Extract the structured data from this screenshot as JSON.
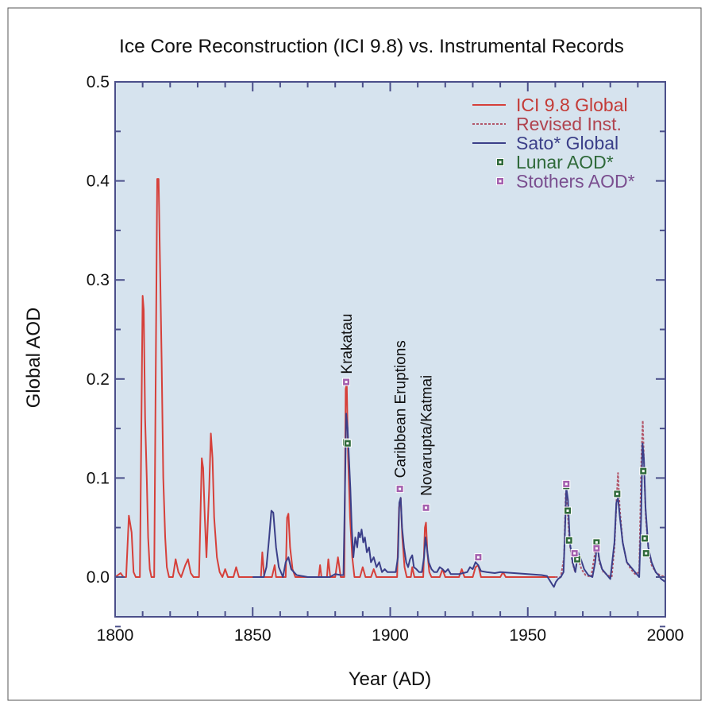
{
  "chart_data": {
    "type": "line",
    "title": "Ice Core Reconstruction (ICI 9.8) vs. Instrumental Records",
    "xlabel": "Year (AD)",
    "ylabel": "Global AOD",
    "xlim": [
      1800,
      2000
    ],
    "ylim": [
      -0.05,
      0.5
    ],
    "grid": false,
    "legend_position": "top-right",
    "x_ticks": [
      {
        "value": 1800,
        "label": "1800"
      },
      {
        "value": 1850,
        "label": "1850"
      },
      {
        "value": 1900,
        "label": "1900"
      },
      {
        "value": 1950,
        "label": "1950"
      },
      {
        "value": 2000,
        "label": "2000"
      }
    ],
    "y_ticks": [
      {
        "value": 0.0,
        "label": "0.0"
      },
      {
        "value": 0.1,
        "label": "0.1"
      },
      {
        "value": 0.2,
        "label": "0.2"
      },
      {
        "value": 0.3,
        "label": "0.3"
      },
      {
        "value": 0.4,
        "label": "0.4"
      },
      {
        "value": 0.5,
        "label": "0.5"
      }
    ],
    "series": [
      {
        "name": "ICI 9.8 Global",
        "color": "#d6403a",
        "style": "solid",
        "points": [
          [
            1800,
            0
          ],
          [
            1802,
            0.004
          ],
          [
            1803,
            0
          ],
          [
            1804,
            0
          ],
          [
            1805,
            0.062
          ],
          [
            1806,
            0.045
          ],
          [
            1806.7,
            0.005
          ],
          [
            1807.5,
            0
          ],
          [
            1809,
            0
          ],
          [
            1809.6,
            0.17
          ],
          [
            1810.0,
            0.284
          ],
          [
            1810.4,
            0.27
          ],
          [
            1810.9,
            0.16
          ],
          [
            1811.5,
            0.1
          ],
          [
            1812,
            0.04
          ],
          [
            1812.6,
            0.008
          ],
          [
            1813.2,
            0
          ],
          [
            1814.2,
            0
          ],
          [
            1815.3,
            0.402
          ],
          [
            1815.8,
            0.402
          ],
          [
            1816.3,
            0.32
          ],
          [
            1816.9,
            0.22
          ],
          [
            1817.5,
            0.1
          ],
          [
            1818.2,
            0.04
          ],
          [
            1818.8,
            0.01
          ],
          [
            1819.6,
            0
          ],
          [
            1821,
            0
          ],
          [
            1822,
            0.018
          ],
          [
            1823,
            0.005
          ],
          [
            1824,
            0
          ],
          [
            1825.5,
            0.012
          ],
          [
            1826.5,
            0.018
          ],
          [
            1827.5,
            0.004
          ],
          [
            1828.5,
            0
          ],
          [
            1830.5,
            0
          ],
          [
            1831.5,
            0.12
          ],
          [
            1832,
            0.11
          ],
          [
            1832.6,
            0.06
          ],
          [
            1833.2,
            0.02
          ],
          [
            1834.2,
            0.09
          ],
          [
            1834.8,
            0.145
          ],
          [
            1835.4,
            0.12
          ],
          [
            1836,
            0.06
          ],
          [
            1837,
            0.02
          ],
          [
            1838,
            0.005
          ],
          [
            1839,
            0
          ],
          [
            1840,
            0.008
          ],
          [
            1841,
            0
          ],
          [
            1843,
            0
          ],
          [
            1844,
            0.01
          ],
          [
            1845,
            0
          ],
          [
            1853,
            0
          ],
          [
            1853.5,
            0.025
          ],
          [
            1854.2,
            0
          ],
          [
            1857,
            0
          ],
          [
            1858,
            0.012
          ],
          [
            1858.5,
            0
          ],
          [
            1862,
            0
          ],
          [
            1862.5,
            0.06
          ],
          [
            1863,
            0.064
          ],
          [
            1863.6,
            0.03
          ],
          [
            1864.5,
            0.008
          ],
          [
            1865.5,
            0
          ],
          [
            1874,
            0
          ],
          [
            1874.5,
            0.012
          ],
          [
            1875,
            0
          ],
          [
            1877,
            0
          ],
          [
            1877.5,
            0.018
          ],
          [
            1878.2,
            0
          ],
          [
            1880,
            0
          ],
          [
            1881,
            0.02
          ],
          [
            1882,
            0
          ],
          [
            1883.3,
            0
          ],
          [
            1883.8,
            0.19
          ],
          [
            1884.2,
            0.195
          ],
          [
            1884.7,
            0.12
          ],
          [
            1885.4,
            0.06
          ],
          [
            1886.2,
            0.02
          ],
          [
            1887,
            0
          ],
          [
            1889,
            0
          ],
          [
            1890,
            0.01
          ],
          [
            1891,
            0
          ],
          [
            1893,
            0
          ],
          [
            1894,
            0.008
          ],
          [
            1895,
            0
          ],
          [
            1902.5,
            0
          ],
          [
            1903.2,
            0.07
          ],
          [
            1903.8,
            0.08
          ],
          [
            1904.4,
            0.04
          ],
          [
            1905.2,
            0.01
          ],
          [
            1906,
            0
          ],
          [
            1907.5,
            0
          ],
          [
            1908,
            0.01
          ],
          [
            1908.8,
            0
          ],
          [
            1912,
            0
          ],
          [
            1912.6,
            0.05
          ],
          [
            1913,
            0.055
          ],
          [
            1913.5,
            0.025
          ],
          [
            1914.2,
            0.005
          ],
          [
            1915,
            0
          ],
          [
            1918,
            0
          ],
          [
            1919,
            0.008
          ],
          [
            1920,
            0
          ],
          [
            1925,
            0
          ],
          [
            1926,
            0.008
          ],
          [
            1927,
            0
          ],
          [
            1930,
            0
          ],
          [
            1931,
            0.01
          ],
          [
            1932,
            0.012
          ],
          [
            1933,
            0
          ],
          [
            1940,
            0
          ],
          [
            1941,
            0.005
          ],
          [
            1942,
            0
          ],
          [
            1960,
            0
          ]
        ]
      },
      {
        "name": "Revised Inst.",
        "color": "#b25568",
        "style": "dashed",
        "points": [
          [
            1960,
            0
          ],
          [
            1962,
            0
          ],
          [
            1963.2,
            0.02
          ],
          [
            1963.8,
            0.085
          ],
          [
            1964.4,
            0.07
          ],
          [
            1965.2,
            0.035
          ],
          [
            1966.2,
            0.015
          ],
          [
            1967.2,
            0.005
          ],
          [
            1968.2,
            0.02
          ],
          [
            1969.5,
            0.008
          ],
          [
            1971,
            0.002
          ],
          [
            1973,
            0
          ],
          [
            1974.5,
            0.025
          ],
          [
            1975.2,
            0.035
          ],
          [
            1976,
            0.015
          ],
          [
            1977.5,
            0.005
          ],
          [
            1979,
            0.002
          ],
          [
            1980.5,
            0
          ],
          [
            1981.5,
            0.03
          ],
          [
            1982.3,
            0.08
          ],
          [
            1982.8,
            0.105
          ],
          [
            1983.4,
            0.07
          ],
          [
            1984.5,
            0.035
          ],
          [
            1986,
            0.015
          ],
          [
            1987.5,
            0.008
          ],
          [
            1989,
            0.003
          ],
          [
            1990.5,
            0.005
          ],
          [
            1991.3,
            0.12
          ],
          [
            1991.8,
            0.158
          ],
          [
            1992.3,
            0.11
          ],
          [
            1992.9,
            0.06
          ],
          [
            1993.8,
            0.03
          ],
          [
            1995,
            0.012
          ],
          [
            1996.5,
            0.005
          ],
          [
            1998,
            0.002
          ],
          [
            2000,
            0
          ]
        ]
      },
      {
        "name": "Sato* Global",
        "color": "#3b3f89",
        "style": "solid",
        "points": [
          [
            1850,
            0
          ],
          [
            1854,
            0
          ],
          [
            1855,
            0.01
          ],
          [
            1856,
            0.04
          ],
          [
            1856.8,
            0.067
          ],
          [
            1857.5,
            0.065
          ],
          [
            1858.5,
            0.03
          ],
          [
            1859.5,
            0.01
          ],
          [
            1861,
            0
          ],
          [
            1862,
            0.015
          ],
          [
            1863,
            0.02
          ],
          [
            1864,
            0.008
          ],
          [
            1866,
            0.002
          ],
          [
            1870,
            0
          ],
          [
            1875,
            0
          ],
          [
            1878,
            0
          ],
          [
            1880,
            0.003
          ],
          [
            1882,
            0.002
          ],
          [
            1883,
            0.002
          ],
          [
            1883.5,
            0.08
          ],
          [
            1884,
            0.165
          ],
          [
            1884.5,
            0.15
          ],
          [
            1885,
            0.12
          ],
          [
            1885.5,
            0.09
          ],
          [
            1886,
            0.05
          ],
          [
            1886.6,
            0.02
          ],
          [
            1887.3,
            0.04
          ],
          [
            1888,
            0.03
          ],
          [
            1888.5,
            0.045
          ],
          [
            1889,
            0.04
          ],
          [
            1889.6,
            0.048
          ],
          [
            1890.2,
            0.035
          ],
          [
            1890.8,
            0.04
          ],
          [
            1891.5,
            0.025
          ],
          [
            1892.3,
            0.03
          ],
          [
            1893,
            0.015
          ],
          [
            1894,
            0.02
          ],
          [
            1895,
            0.01
          ],
          [
            1896,
            0.015
          ],
          [
            1897,
            0.005
          ],
          [
            1898,
            0.008
          ],
          [
            1899,
            0.005
          ],
          [
            1900,
            0.005
          ],
          [
            1901,
            0.005
          ],
          [
            1902,
            0.005
          ],
          [
            1902.8,
            0.02
          ],
          [
            1903.3,
            0.075
          ],
          [
            1903.8,
            0.08
          ],
          [
            1904.3,
            0.05
          ],
          [
            1905,
            0.03
          ],
          [
            1905.8,
            0.015
          ],
          [
            1906.5,
            0.01
          ],
          [
            1907.2,
            0.018
          ],
          [
            1908,
            0.022
          ],
          [
            1908.6,
            0.01
          ],
          [
            1909.5,
            0.008
          ],
          [
            1910.5,
            0.005
          ],
          [
            1911.5,
            0.005
          ],
          [
            1912.3,
            0.02
          ],
          [
            1912.8,
            0.04
          ],
          [
            1913.3,
            0.03
          ],
          [
            1914,
            0.015
          ],
          [
            1915,
            0.008
          ],
          [
            1916,
            0.005
          ],
          [
            1917,
            0.005
          ],
          [
            1918,
            0.01
          ],
          [
            1919,
            0.008
          ],
          [
            1920,
            0.005
          ],
          [
            1921,
            0.008
          ],
          [
            1922,
            0.003
          ],
          [
            1925,
            0.003
          ],
          [
            1928,
            0.005
          ],
          [
            1929,
            0.01
          ],
          [
            1930,
            0.008
          ],
          [
            1931,
            0.015
          ],
          [
            1932,
            0.012
          ],
          [
            1933,
            0.006
          ],
          [
            1935,
            0.005
          ],
          [
            1938,
            0.004
          ],
          [
            1940,
            0.005
          ],
          [
            1945,
            0.004
          ],
          [
            1950,
            0.003
          ],
          [
            1955,
            0.002
          ],
          [
            1957,
            0.001
          ],
          [
            1959,
            -0.008
          ],
          [
            1959.5,
            -0.01
          ],
          [
            1960.2,
            -0.005
          ],
          [
            1961,
            -0.002
          ],
          [
            1962,
            0
          ],
          [
            1963,
            0.005
          ],
          [
            1963.5,
            0.045
          ],
          [
            1964,
            0.09
          ],
          [
            1964.6,
            0.078
          ],
          [
            1965.3,
            0.035
          ],
          [
            1966.3,
            0.015
          ],
          [
            1967.3,
            0.005
          ],
          [
            1968.3,
            0.025
          ],
          [
            1969.3,
            0.018
          ],
          [
            1970.5,
            0.008
          ],
          [
            1972,
            0.002
          ],
          [
            1973.5,
            0
          ],
          [
            1974.5,
            0.015
          ],
          [
            1975.2,
            0.034
          ],
          [
            1976,
            0.018
          ],
          [
            1977,
            0.008
          ],
          [
            1978.5,
            0.003
          ],
          [
            1980,
            -0.002
          ],
          [
            1981.5,
            0.035
          ],
          [
            1982.2,
            0.075
          ],
          [
            1982.8,
            0.08
          ],
          [
            1983.5,
            0.06
          ],
          [
            1984.5,
            0.035
          ],
          [
            1986,
            0.015
          ],
          [
            1987.5,
            0.01
          ],
          [
            1989,
            0.005
          ],
          [
            1990.5,
            0
          ],
          [
            1991.2,
            0.06
          ],
          [
            1991.7,
            0.135
          ],
          [
            1992.2,
            0.12
          ],
          [
            1992.8,
            0.07
          ],
          [
            1993.8,
            0.03
          ],
          [
            1995,
            0.015
          ],
          [
            1996.5,
            0.005
          ],
          [
            1997.5,
            0.002
          ],
          [
            1998.5,
            -0.002
          ],
          [
            2000,
            -0.005
          ]
        ]
      }
    ],
    "markers": [
      {
        "name": "Lunar AOD*",
        "color": "#2f6a3a",
        "points": [
          [
            1884,
            0.136
          ],
          [
            1884.5,
            0.135
          ],
          [
            1964,
            0.092
          ],
          [
            1964.5,
            0.067
          ],
          [
            1965,
            0.037
          ],
          [
            1968,
            0.018
          ],
          [
            1975,
            0.035
          ],
          [
            1982.5,
            0.084
          ],
          [
            1992,
            0.107
          ],
          [
            1992.5,
            0.039
          ],
          [
            1993,
            0.024
          ]
        ]
      },
      {
        "name": "Stothers AOD*",
        "color": "#a45fae",
        "points": [
          [
            1884,
            0.197
          ],
          [
            1903.5,
            0.089
          ],
          [
            1913,
            0.07
          ],
          [
            1932,
            0.02
          ],
          [
            1964,
            0.094
          ],
          [
            1967,
            0.024
          ],
          [
            1975,
            0.029
          ]
        ]
      }
    ],
    "annotations": [
      {
        "text": "Krakatau",
        "x": 1884,
        "y": 0.205,
        "rotate": -90
      },
      {
        "text": "Caribbean Eruptions",
        "x": 1903.5,
        "y": 0.1,
        "rotate": -90
      },
      {
        "text": "Novarupta/Katmai",
        "x": 1913,
        "y": 0.082,
        "rotate": -90
      }
    ]
  }
}
